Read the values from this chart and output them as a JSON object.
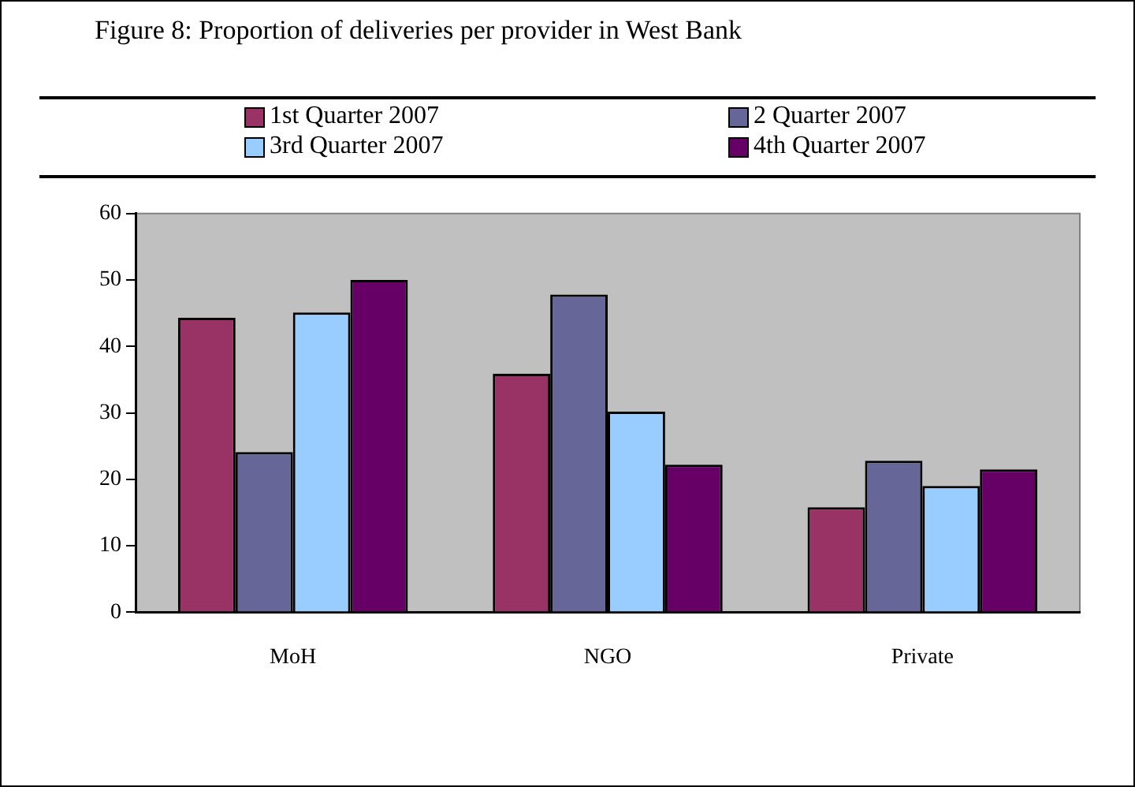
{
  "chart_data": {
    "type": "bar",
    "title": "Figure 8: Proportion of deliveries per provider in West Bank",
    "categories": [
      "MoH",
      "NGO",
      "Private"
    ],
    "series": [
      {
        "name": "1st Quarter 2007",
        "color": "#993366",
        "values": [
          44.3,
          35.9,
          15.8
        ]
      },
      {
        "name": "2 Quarter 2007",
        "color": "#666699",
        "values": [
          24.1,
          47.8,
          22.8
        ]
      },
      {
        "name": "3rd Quarter 2007",
        "color": "#99ccff",
        "values": [
          45.1,
          30.2,
          19
        ]
      },
      {
        "name": "4th Quarter 2007",
        "color": "#660066",
        "values": [
          50,
          22.2,
          21.5
        ]
      }
    ],
    "ylim": [
      0,
      60
    ],
    "yticks": [
      0,
      10,
      20,
      30,
      40,
      50,
      60
    ],
    "grid": false,
    "legend": "top"
  }
}
